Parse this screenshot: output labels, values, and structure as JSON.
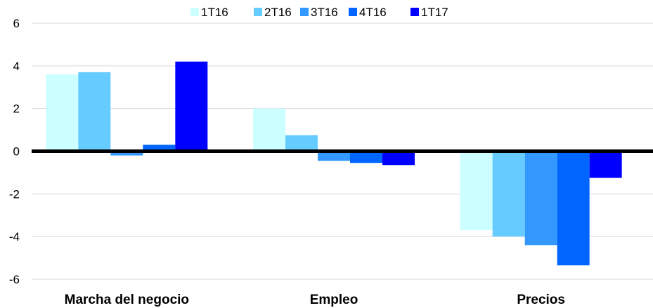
{
  "chart_data": {
    "type": "bar",
    "categories": [
      "Marcha del negocio",
      "Empleo",
      "Precios"
    ],
    "series": [
      {
        "name": "1T16",
        "color": "#ccffff",
        "values": [
          3.6,
          2.0,
          -3.7
        ]
      },
      {
        "name": "2T16",
        "color": "#66ccff",
        "values": [
          3.7,
          0.75,
          -4.0
        ]
      },
      {
        "name": "3T16",
        "color": "#3399ff",
        "values": [
          -0.2,
          -0.45,
          -4.4
        ]
      },
      {
        "name": "4T16",
        "color": "#0066ff",
        "values": [
          0.3,
          -0.55,
          -5.35
        ]
      },
      {
        "name": "1T17",
        "color": "#0000ff",
        "values": [
          4.2,
          -0.65,
          -1.25
        ]
      }
    ],
    "yticks": [
      "6",
      "4",
      "2",
      "0",
      "-2",
      "-4",
      "-6"
    ],
    "ylim": [
      -6,
      6
    ],
    "grid": true,
    "legend_position": "top"
  }
}
